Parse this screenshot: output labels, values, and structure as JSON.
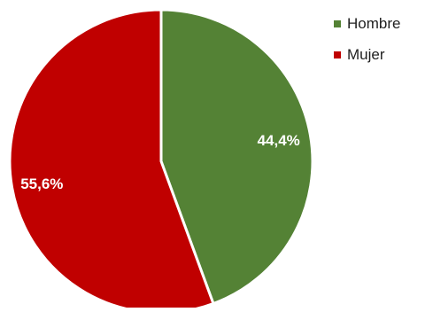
{
  "chart_data": {
    "type": "pie",
    "categories": [
      "Hombre",
      "Mujer"
    ],
    "values": [
      44.4,
      55.6
    ],
    "labels": [
      "44,4%",
      "55,6%"
    ],
    "colors": [
      "#548235",
      "#c00000"
    ],
    "legend_position": "top-right"
  }
}
